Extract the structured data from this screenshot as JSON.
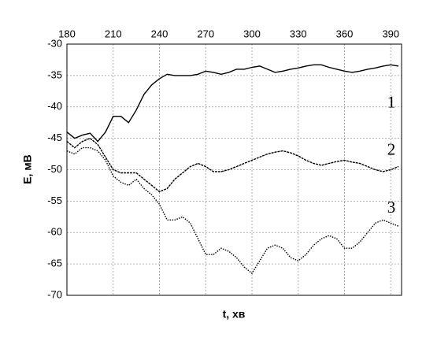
{
  "chart_data": {
    "type": "line",
    "xlabel": "t, хв",
    "ylabel": "E, мВ",
    "xlim": [
      180,
      397
    ],
    "xticks": [
      180,
      210,
      240,
      270,
      300,
      330,
      360,
      390
    ],
    "ylim": [
      -70,
      -30
    ],
    "yticks": [
      -70,
      -65,
      -60,
      -55,
      -50,
      -45,
      -40,
      -35,
      -30
    ],
    "grid": true,
    "x": [
      180,
      185,
      190,
      195,
      200,
      205,
      210,
      215,
      220,
      225,
      230,
      235,
      240,
      245,
      250,
      255,
      260,
      265,
      270,
      275,
      280,
      285,
      290,
      295,
      300,
      305,
      310,
      315,
      320,
      325,
      330,
      335,
      340,
      345,
      350,
      355,
      360,
      365,
      370,
      375,
      380,
      385,
      390,
      395
    ],
    "series": [
      {
        "name": "1",
        "color": "#000000",
        "values": [
          -44,
          -45,
          -44.5,
          -44.2,
          -45.5,
          -44,
          -41.5,
          -41.5,
          -42.5,
          -40.5,
          -38,
          -36.5,
          -35.5,
          -34.8,
          -35,
          -35,
          -35,
          -34.8,
          -34.3,
          -34.5,
          -34.8,
          -34.5,
          -34,
          -34,
          -33.7,
          -33.5,
          -34,
          -34.5,
          -34.3,
          -34,
          -33.8,
          -33.5,
          -33.3,
          -33.3,
          -33.7,
          -34,
          -34.3,
          -34.5,
          -34.3,
          -34,
          -33.8,
          -33.5,
          -33.3,
          -33.5
        ]
      },
      {
        "name": "2",
        "color": "#000000",
        "values": [
          -45.5,
          -46.5,
          -45.5,
          -45,
          -46,
          -48,
          -50,
          -50.5,
          -50.5,
          -50.5,
          -51.5,
          -52.5,
          -53.5,
          -53,
          -51.5,
          -50.5,
          -49.5,
          -49,
          -49.5,
          -50.3,
          -50.3,
          -50,
          -49.5,
          -49,
          -48.5,
          -48,
          -47.5,
          -47.2,
          -47,
          -47.3,
          -47.8,
          -48.5,
          -49,
          -49.3,
          -49,
          -48.7,
          -48.5,
          -48.8,
          -49,
          -49.5,
          -50,
          -50.3,
          -50,
          -49.5
        ]
      },
      {
        "name": "3",
        "color": "#000000",
        "values": [
          -47,
          -47.5,
          -46.5,
          -46.5,
          -47,
          -48.5,
          -51,
          -52,
          -52.5,
          -51.5,
          -53,
          -54,
          -55.5,
          -58,
          -58,
          -57.5,
          -58.5,
          -61,
          -63.5,
          -63.5,
          -62.5,
          -63,
          -64,
          -65.5,
          -66.5,
          -64.5,
          -62.5,
          -62,
          -62.5,
          -64,
          -64.5,
          -63.5,
          -62,
          -61,
          -60.5,
          -61,
          -62.5,
          -62.5,
          -61.5,
          -60,
          -58.5,
          -58,
          -58.5,
          -59
        ]
      }
    ]
  }
}
